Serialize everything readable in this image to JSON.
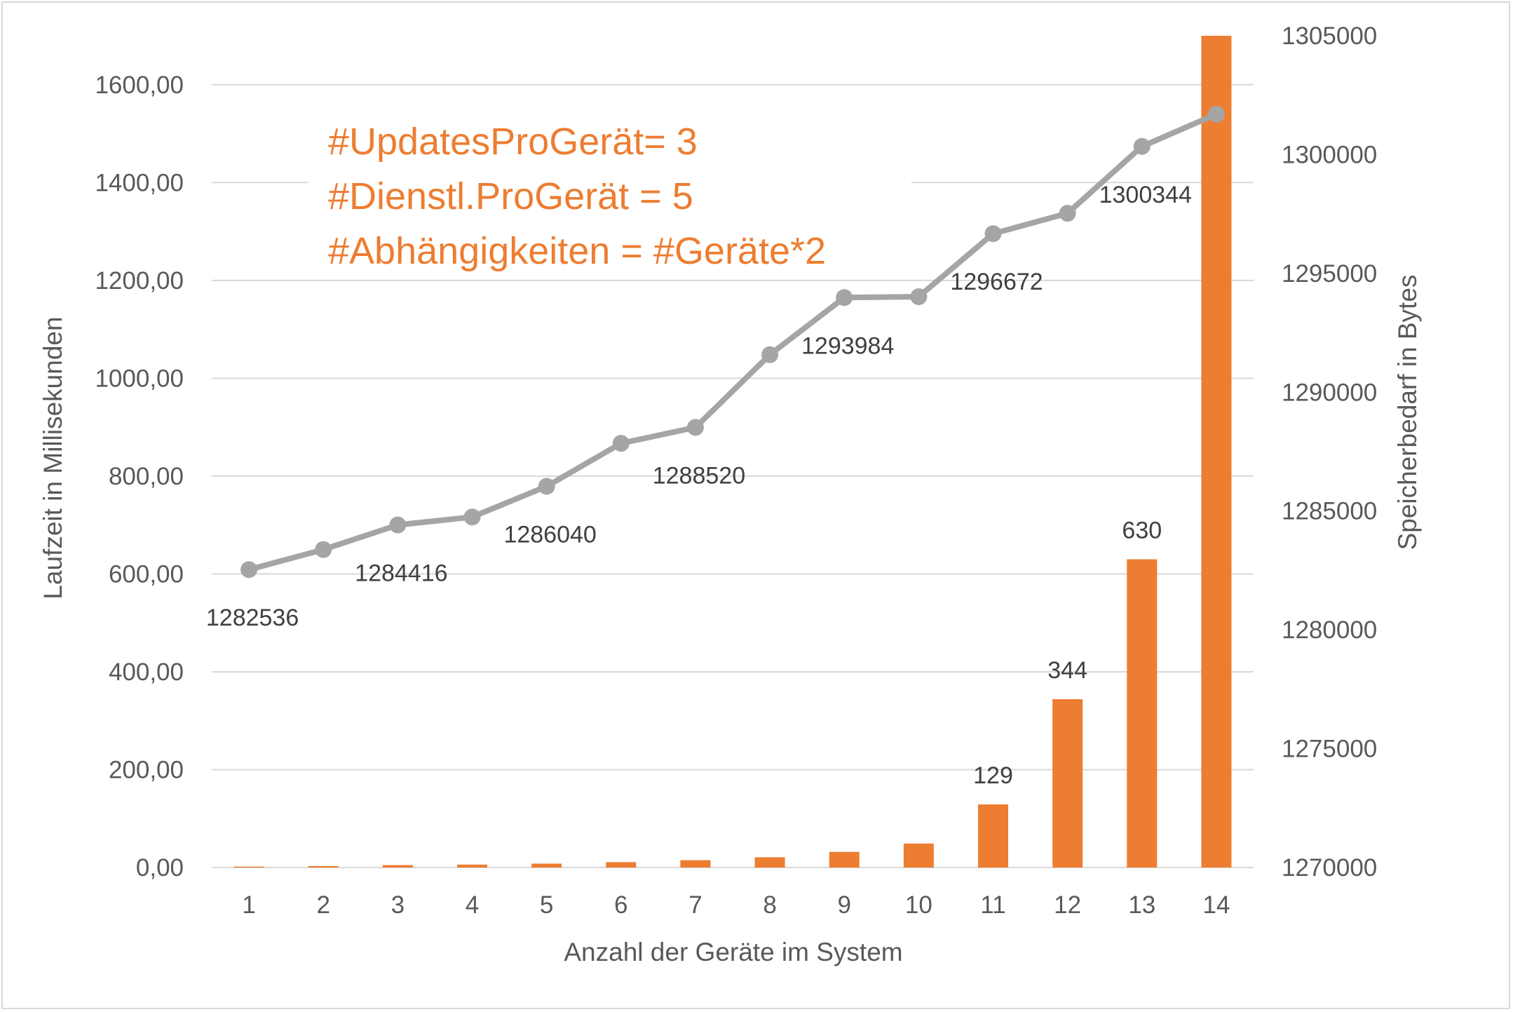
{
  "chart_data": {
    "type": "bar",
    "categories": [
      "1",
      "2",
      "3",
      "4",
      "5",
      "6",
      "7",
      "8",
      "9",
      "10",
      "11",
      "12",
      "13",
      "14"
    ],
    "xlabel": "Anzahl der Geräte im System",
    "ylabel": "Laufzeit in Millisekunden",
    "ylabel_right": "Speicherbedarf in Bytes",
    "ylim": [
      0,
      1700
    ],
    "ylim_right": [
      1270000,
      1305000
    ],
    "yticks": [
      "0,00",
      "200,00",
      "400,00",
      "600,00",
      "800,00",
      "1000,00",
      "1200,00",
      "1400,00",
      "1600,00"
    ],
    "yticks_right": [
      "1270000",
      "1275000",
      "1280000",
      "1285000",
      "1290000",
      "1295000",
      "1300000",
      "1305000"
    ],
    "grid": true,
    "series": [
      {
        "type": "bar",
        "axis": "left",
        "color": "#ed7d31",
        "values": [
          2,
          3,
          5,
          6,
          8,
          11,
          15,
          21,
          32,
          49,
          129,
          344,
          630,
          1700
        ],
        "labels": [
          "",
          "",
          "",
          "",
          "",
          "",
          "",
          "",
          "",
          "",
          "129",
          "344",
          "630",
          ""
        ]
      },
      {
        "type": "line",
        "axis": "right",
        "color": "#a5a5a5",
        "values": [
          1282536,
          1283380,
          1284416,
          1284750,
          1286040,
          1287850,
          1288520,
          1291580,
          1293984,
          1294020,
          1296672,
          1297530,
          1300344,
          1301700
        ],
        "labels": [
          "1282536",
          "",
          "1284416",
          "",
          "1286040",
          "",
          "1288520",
          "",
          "1293984",
          "",
          "1296672",
          "",
          "1300344",
          ""
        ]
      }
    ],
    "annotations": [
      "#UpdatesProGerät= 3",
      "#Dienstl.ProGerät = 5",
      "#Abhängigkeiten = #Geräte*2"
    ]
  }
}
